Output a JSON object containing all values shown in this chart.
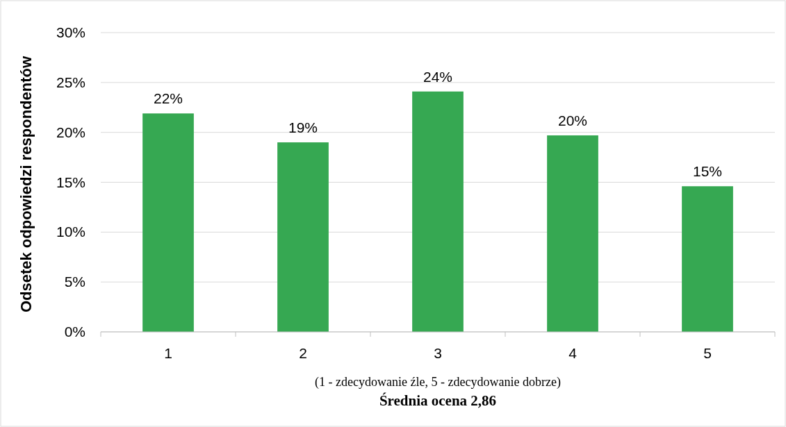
{
  "chart_data": {
    "type": "bar",
    "categories": [
      "1",
      "2",
      "3",
      "4",
      "5"
    ],
    "values": [
      21.9,
      19.0,
      24.1,
      19.7,
      14.6
    ],
    "value_labels": [
      "22%",
      "19%",
      "24%",
      "20%",
      "15%"
    ],
    "color": "#36a852",
    "ylabel": "Odsetek odpowiedzi respondentów",
    "xlabel": "(1 - zdecydowanie źle, 5 - zdecydowanie dobrze)",
    "annotations": [
      "Średnia ocena 2,86"
    ],
    "ylim": [
      0,
      30
    ],
    "yticks": [
      {
        "value": 0,
        "label": "0%"
      },
      {
        "value": 5,
        "label": "5%"
      },
      {
        "value": 10,
        "label": "10%"
      },
      {
        "value": 15,
        "label": "15%"
      },
      {
        "value": 20,
        "label": "20%"
      },
      {
        "value": 25,
        "label": "25%"
      },
      {
        "value": 30,
        "label": "30%"
      }
    ],
    "grid": "y"
  }
}
